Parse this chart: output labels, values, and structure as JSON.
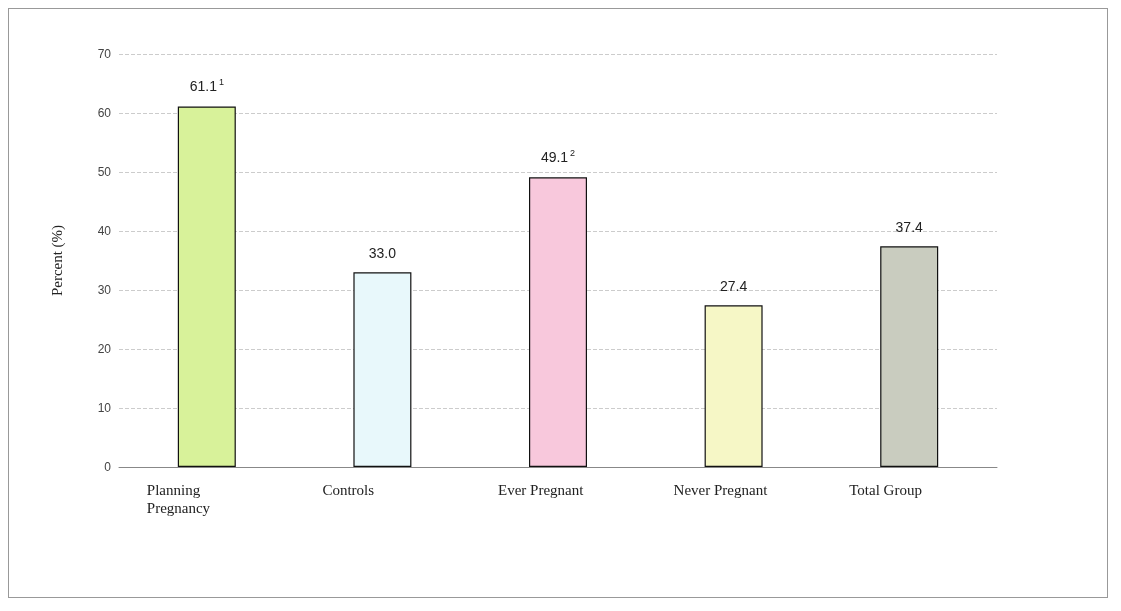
{
  "chart_data": {
    "type": "bar",
    "ylabel": "Percent (%)",
    "categories": [
      "Planning\nPregnancy",
      "Controls",
      "Ever Pregnant",
      "Never Pregnant",
      "Total Group"
    ],
    "values": [
      61.1,
      33.0,
      49.1,
      27.4,
      37.4
    ],
    "colors": [
      "#d8f29a",
      "#e8f8fb",
      "#f8c8dc",
      "#f6f7c6",
      "#c9ccbf"
    ],
    "value_labels": [
      "61.1$^{1}$",
      "33.0",
      "49.1$^{2}$",
      "27.4",
      "37.4"
    ],
    "ylim": [
      0,
      70
    ],
    "yticks": [
      0,
      10,
      20,
      30,
      40,
      50,
      60,
      70
    ],
    "grid": "y"
  }
}
